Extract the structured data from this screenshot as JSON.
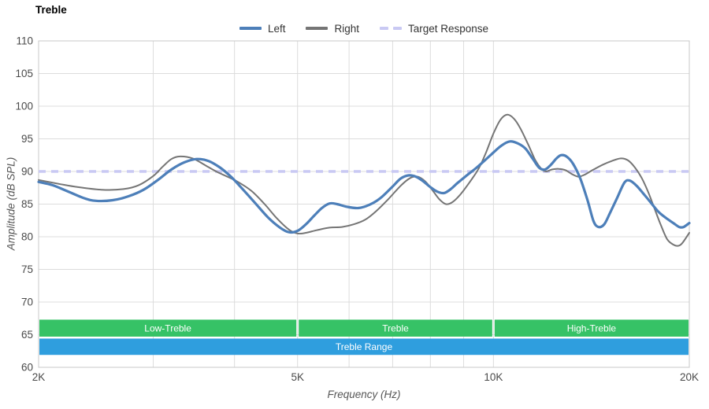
{
  "title": "Treble",
  "legend": [
    {
      "label": "Left",
      "color": "#4d7fb9",
      "style": "solid"
    },
    {
      "label": "Right",
      "color": "#757575",
      "style": "solid"
    },
    {
      "label": "Target Response",
      "color": "#c9c9f3",
      "style": "dashed"
    }
  ],
  "chart_data": {
    "type": "line",
    "title": "Treble",
    "xlabel": "Frequency (Hz)",
    "ylabel": "Amplitude (dB SPL)",
    "x_scale": "log",
    "xlim": [
      2000,
      20000
    ],
    "ylim": [
      60,
      110
    ],
    "grid": true,
    "legend_position": "top-center",
    "x_ticks": [
      {
        "f": 2000,
        "label": "2K"
      },
      {
        "f": 5000,
        "label": "5K"
      },
      {
        "f": 10000,
        "label": "10K"
      },
      {
        "f": 20000,
        "label": "20K"
      }
    ],
    "x_gridlines": [
      3000,
      4000,
      5000,
      6000,
      7000,
      8000,
      9000,
      10000
    ],
    "y_ticks": [
      60,
      65,
      70,
      75,
      80,
      85,
      90,
      95,
      100,
      105,
      110
    ],
    "target_response_db": 90,
    "series": [
      {
        "name": "Left",
        "color": "#4d7fb9",
        "stroke_width": 3.2,
        "points": [
          [
            2000,
            88.4
          ],
          [
            2100,
            87.9
          ],
          [
            2200,
            87.1
          ],
          [
            2350,
            85.9
          ],
          [
            2450,
            85.5
          ],
          [
            2600,
            85.6
          ],
          [
            2750,
            86.2
          ],
          [
            2900,
            87.2
          ],
          [
            3050,
            88.7
          ],
          [
            3200,
            90.3
          ],
          [
            3350,
            91.4
          ],
          [
            3500,
            91.9
          ],
          [
            3650,
            91.6
          ],
          [
            3800,
            90.6
          ],
          [
            3950,
            89.2
          ],
          [
            4100,
            87.5
          ],
          [
            4300,
            85.2
          ],
          [
            4500,
            83.0
          ],
          [
            4700,
            81.4
          ],
          [
            4850,
            80.7
          ],
          [
            5000,
            80.9
          ],
          [
            5150,
            81.9
          ],
          [
            5300,
            83.2
          ],
          [
            5450,
            84.4
          ],
          [
            5600,
            85.1
          ],
          [
            5750,
            85.0
          ],
          [
            5950,
            84.6
          ],
          [
            6200,
            84.4
          ],
          [
            6450,
            84.9
          ],
          [
            6700,
            85.9
          ],
          [
            7000,
            87.7
          ],
          [
            7200,
            88.9
          ],
          [
            7400,
            89.4
          ],
          [
            7600,
            89.2
          ],
          [
            7800,
            88.5
          ],
          [
            8000,
            87.6
          ],
          [
            8200,
            86.9
          ],
          [
            8400,
            86.7
          ],
          [
            8600,
            87.3
          ],
          [
            8800,
            88.2
          ],
          [
            9100,
            89.4
          ],
          [
            9400,
            90.5
          ],
          [
            9700,
            91.7
          ],
          [
            10000,
            92.9
          ],
          [
            10300,
            94.0
          ],
          [
            10600,
            94.6
          ],
          [
            10900,
            94.3
          ],
          [
            11200,
            93.5
          ],
          [
            11500,
            91.9
          ],
          [
            11750,
            90.6
          ],
          [
            12000,
            90.3
          ],
          [
            12250,
            91.0
          ],
          [
            12500,
            92.0
          ],
          [
            12700,
            92.5
          ],
          [
            12950,
            92.3
          ],
          [
            13250,
            91.2
          ],
          [
            13600,
            88.9
          ],
          [
            13950,
            85.6
          ],
          [
            14250,
            82.4
          ],
          [
            14500,
            81.5
          ],
          [
            14800,
            81.9
          ],
          [
            15100,
            83.6
          ],
          [
            15500,
            86.0
          ],
          [
            15900,
            88.3
          ],
          [
            16200,
            88.6
          ],
          [
            16600,
            87.8
          ],
          [
            17000,
            86.6
          ],
          [
            17400,
            85.4
          ],
          [
            17900,
            83.9
          ],
          [
            18400,
            82.9
          ],
          [
            18900,
            82.1
          ],
          [
            19300,
            81.5
          ],
          [
            19600,
            81.5
          ],
          [
            20000,
            82.1
          ]
        ]
      },
      {
        "name": "Right",
        "color": "#757575",
        "stroke_width": 2,
        "points": [
          [
            2000,
            88.7
          ],
          [
            2150,
            88.1
          ],
          [
            2300,
            87.6
          ],
          [
            2500,
            87.2
          ],
          [
            2700,
            87.3
          ],
          [
            2850,
            87.9
          ],
          [
            3000,
            89.3
          ],
          [
            3100,
            90.7
          ],
          [
            3200,
            91.9
          ],
          [
            3300,
            92.3
          ],
          [
            3450,
            92.0
          ],
          [
            3600,
            91.0
          ],
          [
            3750,
            90.0
          ],
          [
            3900,
            89.2
          ],
          [
            4050,
            88.4
          ],
          [
            4250,
            87.0
          ],
          [
            4450,
            85.0
          ],
          [
            4650,
            82.8
          ],
          [
            4850,
            81.1
          ],
          [
            5000,
            80.5
          ],
          [
            5150,
            80.6
          ],
          [
            5350,
            81.0
          ],
          [
            5600,
            81.4
          ],
          [
            5850,
            81.5
          ],
          [
            6100,
            81.9
          ],
          [
            6350,
            82.6
          ],
          [
            6600,
            83.9
          ],
          [
            6900,
            85.8
          ],
          [
            7200,
            87.8
          ],
          [
            7450,
            89.0
          ],
          [
            7650,
            89.2
          ],
          [
            7850,
            88.5
          ],
          [
            8050,
            87.2
          ],
          [
            8250,
            85.8
          ],
          [
            8450,
            85.0
          ],
          [
            8650,
            85.3
          ],
          [
            8900,
            86.5
          ],
          [
            9200,
            88.4
          ],
          [
            9500,
            90.5
          ],
          [
            9750,
            93.0
          ],
          [
            10000,
            95.8
          ],
          [
            10250,
            97.9
          ],
          [
            10500,
            98.7
          ],
          [
            10750,
            98.1
          ],
          [
            11000,
            96.6
          ],
          [
            11300,
            94.2
          ],
          [
            11600,
            91.7
          ],
          [
            11850,
            90.4
          ],
          [
            12050,
            90.0
          ],
          [
            12300,
            90.3
          ],
          [
            12600,
            90.4
          ],
          [
            12900,
            90.2
          ],
          [
            13200,
            89.6
          ],
          [
            13500,
            89.2
          ],
          [
            13800,
            89.5
          ],
          [
            14200,
            90.2
          ],
          [
            14700,
            91.0
          ],
          [
            15200,
            91.6
          ],
          [
            15700,
            92.0
          ],
          [
            16100,
            91.7
          ],
          [
            16500,
            90.6
          ],
          [
            16900,
            89.0
          ],
          [
            17300,
            86.8
          ],
          [
            17700,
            84.2
          ],
          [
            18100,
            81.7
          ],
          [
            18500,
            79.6
          ],
          [
            18900,
            78.8
          ],
          [
            19200,
            78.6
          ],
          [
            19500,
            79.0
          ],
          [
            20000,
            80.6
          ]
        ]
      }
    ],
    "bands": {
      "green_color": "#36c266",
      "blue_color": "#2f9ede",
      "label_color": "#ffffff",
      "green_db": [
        64.7,
        67.3
      ],
      "blue_db": [
        61.9,
        64.4
      ],
      "green_segments": [
        {
          "label": "Low-Treble",
          "from": 2000,
          "to": 5000
        },
        {
          "label": "Treble",
          "from": 5000,
          "to": 10000
        },
        {
          "label": "High-Treble",
          "from": 10000,
          "to": 20000
        }
      ],
      "blue_segment": {
        "label": "Treble Range",
        "from": 2000,
        "to": 20000
      }
    },
    "colors": {
      "gridline": "#dcdcdc",
      "plot_border": "#c9c9c9",
      "tick_text": "#4a4a4a",
      "target_line": "#c9c9f3"
    }
  }
}
